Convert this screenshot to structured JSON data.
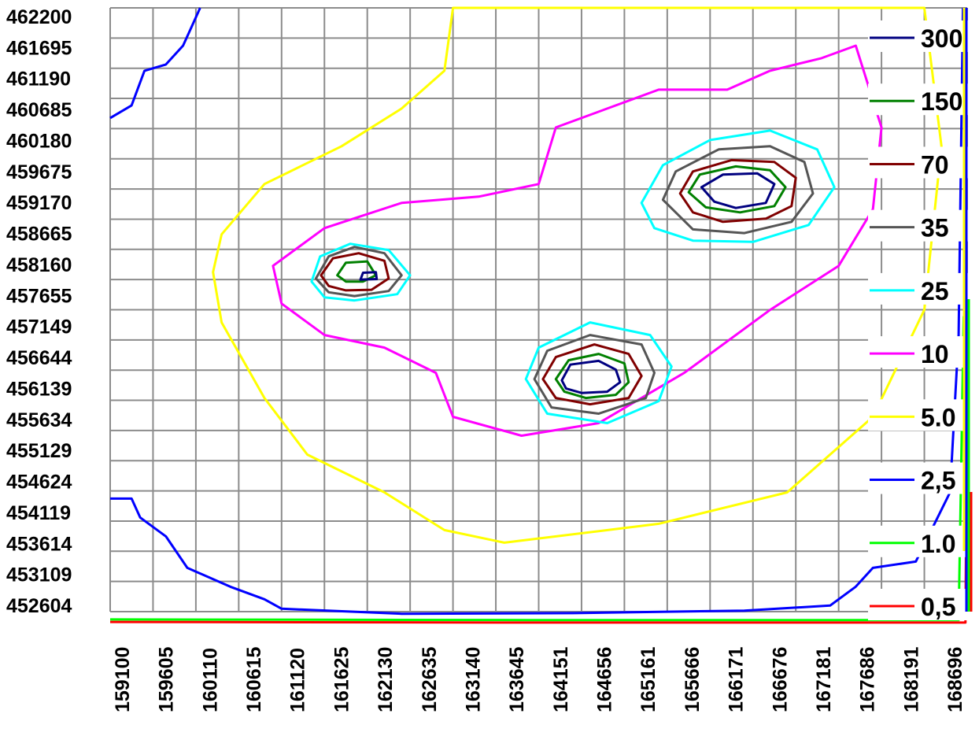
{
  "chart_data": {
    "type": "contour",
    "title": "",
    "xlabel": "",
    "ylabel": "",
    "x_ticks": [
      "159100",
      "159605",
      "160110",
      "160615",
      "161120",
      "161625",
      "162130",
      "162635",
      "163140",
      "163645",
      "164151",
      "164656",
      "165161",
      "165666",
      "166171",
      "166676",
      "167181",
      "167686",
      "168191",
      "168696"
    ],
    "y_ticks": [
      "462200",
      "461695",
      "461190",
      "460685",
      "460180",
      "459675",
      "459170",
      "458665",
      "458160",
      "457655",
      "457149",
      "456644",
      "456139",
      "455634",
      "455129",
      "454624",
      "454119",
      "453614",
      "453109",
      "452604"
    ],
    "xlim": [
      159100,
      169100
    ],
    "ylim": [
      452604,
      462200
    ],
    "grid": true,
    "legend_position": "right",
    "legend": [
      {
        "label": "300",
        "color": "#000080"
      },
      {
        "label": "150",
        "color": "#008000"
      },
      {
        "label": "70",
        "color": "#800000"
      },
      {
        "label": "35",
        "color": "#555555"
      },
      {
        "label": "25",
        "color": "#00ffff"
      },
      {
        "label": "10",
        "color": "#ff00ff"
      },
      {
        "label": "5.0",
        "color": "#ffff00"
      },
      {
        "label": "2,5",
        "color": "#0000ff"
      },
      {
        "label": "1.0",
        "color": "#00ff00"
      },
      {
        "label": "0,5",
        "color": "#ff0000"
      }
    ],
    "hotspots": [
      {
        "x": 162000,
        "y": 457950
      },
      {
        "x": 164700,
        "y": 456200
      },
      {
        "x": 166200,
        "y": 459170
      }
    ],
    "contours": [
      {
        "level": "10",
        "color": "#ff00ff",
        "rings": [
          [
            [
              161000,
              458100
            ],
            [
              161600,
              458700
            ],
            [
              162500,
              459100
            ],
            [
              163400,
              459200
            ],
            [
              164100,
              459400
            ],
            [
              164300,
              460300
            ],
            [
              164900,
              460600
            ],
            [
              165500,
              460900
            ],
            [
              166300,
              460900
            ],
            [
              166800,
              461200
            ],
            [
              167400,
              461400
            ],
            [
              167800,
              461600
            ],
            [
              168100,
              460300
            ],
            [
              168000,
              459000
            ],
            [
              167600,
              458100
            ],
            [
              166800,
              457400
            ],
            [
              165800,
              456400
            ],
            [
              164800,
              455600
            ],
            [
              163900,
              455400
            ],
            [
              163100,
              455700
            ],
            [
              162900,
              456400
            ],
            [
              162300,
              456800
            ],
            [
              161600,
              457000
            ],
            [
              161100,
              457500
            ]
          ]
        ]
      },
      {
        "level": "5.0",
        "color": "#ffff00",
        "rings": [
          [
            [
              160400,
              458600
            ],
            [
              160900,
              459400
            ],
            [
              161800,
              460000
            ],
            [
              162500,
              460600
            ],
            [
              163000,
              461200
            ],
            [
              163100,
              462200
            ],
            [
              168600,
              462200
            ],
            [
              168800,
              460000
            ],
            [
              168600,
              457400
            ],
            [
              168000,
              455700
            ],
            [
              167000,
              454500
            ],
            [
              165500,
              454000
            ],
            [
              163700,
              453700
            ],
            [
              163000,
              453900
            ],
            [
              162300,
              454500
            ],
            [
              161400,
              455100
            ],
            [
              160900,
              456000
            ],
            [
              160400,
              457200
            ],
            [
              160300,
              458000
            ]
          ]
        ]
      },
      {
        "level": "25",
        "color": "#00ffff",
        "rings": [
          [
            [
              161450,
              457850
            ],
            [
              161550,
              458250
            ],
            [
              161900,
              458450
            ],
            [
              162350,
              458350
            ],
            [
              162600,
              457950
            ],
            [
              162450,
              457650
            ],
            [
              161950,
              457550
            ],
            [
              161600,
              457600
            ]
          ],
          [
            [
              163950,
              456300
            ],
            [
              164100,
              456800
            ],
            [
              164700,
              457200
            ],
            [
              165400,
              457000
            ],
            [
              165650,
              456500
            ],
            [
              165500,
              455950
            ],
            [
              164900,
              455600
            ],
            [
              164200,
              455750
            ]
          ],
          [
            [
              165300,
              459100
            ],
            [
              165550,
              459700
            ],
            [
              166100,
              460100
            ],
            [
              166800,
              460250
            ],
            [
              167350,
              459950
            ],
            [
              167550,
              459350
            ],
            [
              167250,
              458750
            ],
            [
              166600,
              458480
            ],
            [
              165900,
              458500
            ],
            [
              165450,
              458700
            ]
          ]
        ]
      },
      {
        "level": "35",
        "color": "#555555",
        "rings": [
          [
            [
              161500,
              457900
            ],
            [
              161650,
              458250
            ],
            [
              161950,
              458400
            ],
            [
              162300,
              458300
            ],
            [
              162500,
              457950
            ],
            [
              162350,
              457700
            ],
            [
              161950,
              457620
            ],
            [
              161650,
              457680
            ]
          ],
          [
            [
              164050,
              456300
            ],
            [
              164200,
              456750
            ],
            [
              164700,
              457000
            ],
            [
              165300,
              456850
            ],
            [
              165450,
              456400
            ],
            [
              165350,
              456000
            ],
            [
              164800,
              455750
            ],
            [
              164250,
              455850
            ]
          ],
          [
            [
              165550,
              459150
            ],
            [
              165700,
              459600
            ],
            [
              166200,
              459950
            ],
            [
              166800,
              460000
            ],
            [
              167200,
              459750
            ],
            [
              167300,
              459250
            ],
            [
              167050,
              458800
            ],
            [
              166500,
              458620
            ],
            [
              165900,
              458680
            ]
          ]
        ]
      },
      {
        "level": "70",
        "color": "#800000",
        "rings": [
          [
            [
              161560,
              457950
            ],
            [
              161700,
              458220
            ],
            [
              162000,
              458300
            ],
            [
              162300,
              458180
            ],
            [
              162350,
              457900
            ],
            [
              162150,
              457720
            ],
            [
              161850,
              457710
            ],
            [
              161650,
              457780
            ]
          ],
          [
            [
              164150,
              456300
            ],
            [
              164300,
              456650
            ],
            [
              164750,
              456850
            ],
            [
              165150,
              456700
            ],
            [
              165300,
              456350
            ],
            [
              165150,
              456000
            ],
            [
              164700,
              455900
            ],
            [
              164300,
              456000
            ]
          ],
          [
            [
              165750,
              459250
            ],
            [
              165900,
              459600
            ],
            [
              166350,
              459780
            ],
            [
              166850,
              459750
            ],
            [
              167100,
              459500
            ],
            [
              167050,
              459050
            ],
            [
              166750,
              458850
            ],
            [
              166250,
              458800
            ],
            [
              165900,
              458950
            ]
          ]
        ]
      },
      {
        "level": "150",
        "color": "#008000",
        "rings": [
          [
            [
              161750,
              457950
            ],
            [
              161850,
              458150
            ],
            [
              162100,
              458170
            ],
            [
              162200,
              457950
            ],
            [
              162050,
              457850
            ],
            [
              161850,
              457850
            ]
          ],
          [
            [
              164300,
              456300
            ],
            [
              164450,
              456600
            ],
            [
              164800,
              456700
            ],
            [
              165100,
              456550
            ],
            [
              165150,
              456250
            ],
            [
              165000,
              456050
            ],
            [
              164650,
              456000
            ],
            [
              164400,
              456100
            ]
          ],
          [
            [
              165850,
              459270
            ],
            [
              165980,
              459550
            ],
            [
              166400,
              459680
            ],
            [
              166800,
              459620
            ],
            [
              166980,
              459350
            ],
            [
              166850,
              459050
            ],
            [
              166450,
              458950
            ],
            [
              166050,
              459030
            ]
          ]
        ]
      },
      {
        "level": "300",
        "color": "#000080",
        "rings": [
          [
            [
              162020,
              457880
            ],
            [
              162050,
              457990
            ],
            [
              162200,
              458000
            ],
            [
              162210,
              457890
            ]
          ],
          [
            [
              164370,
              456280
            ],
            [
              164470,
              456530
            ],
            [
              164800,
              456590
            ],
            [
              165000,
              456450
            ],
            [
              165050,
              456250
            ],
            [
              164900,
              456100
            ],
            [
              164600,
              456080
            ],
            [
              164420,
              456150
            ]
          ],
          [
            [
              166000,
              459350
            ],
            [
              166250,
              459550
            ],
            [
              166650,
              459570
            ],
            [
              166850,
              459400
            ],
            [
              166750,
              459100
            ],
            [
              166400,
              459020
            ],
            [
              166150,
              459120
            ]
          ]
        ]
      },
      {
        "level": "2,5",
        "color": "#0000ff",
        "rings": [
          [
            [
              159100,
              460450
            ],
            [
              159350,
              460650
            ],
            [
              159500,
              461200
            ],
            [
              159750,
              461300
            ],
            [
              159950,
              461600
            ],
            [
              160050,
              461900
            ],
            [
              160150,
              462200
            ]
          ],
          [
            [
              159100,
              454400
            ],
            [
              159350,
              454400
            ],
            [
              159450,
              454100
            ],
            [
              159750,
              453800
            ],
            [
              160000,
              453300
            ],
            [
              160500,
              453000
            ],
            [
              160900,
              452800
            ],
            [
              161100,
              452650
            ],
            [
              162500,
              452570
            ],
            [
              164500,
              452580
            ],
            [
              166500,
              452620
            ],
            [
              167500,
              452700
            ],
            [
              167800,
              453000
            ],
            [
              168000,
              453300
            ],
            [
              168500,
              453400
            ],
            [
              168900,
              454500
            ],
            [
              169000,
              457000
            ],
            [
              169050,
              462200
            ]
          ]
        ]
      },
      {
        "level": "1.0",
        "color": "#00ff00",
        "rings": [
          [
            [
              159100,
              452480
            ],
            [
              164000,
              452470
            ],
            [
              169000,
              452470
            ],
            [
              169060,
              457300
            ]
          ]
        ]
      },
      {
        "level": "0,5",
        "color": "#ff0000",
        "rings": [
          [
            [
              159100,
              452440
            ],
            [
              164000,
              452430
            ],
            [
              169080,
              452430
            ],
            [
              169090,
              454400
            ]
          ]
        ]
      }
    ]
  }
}
